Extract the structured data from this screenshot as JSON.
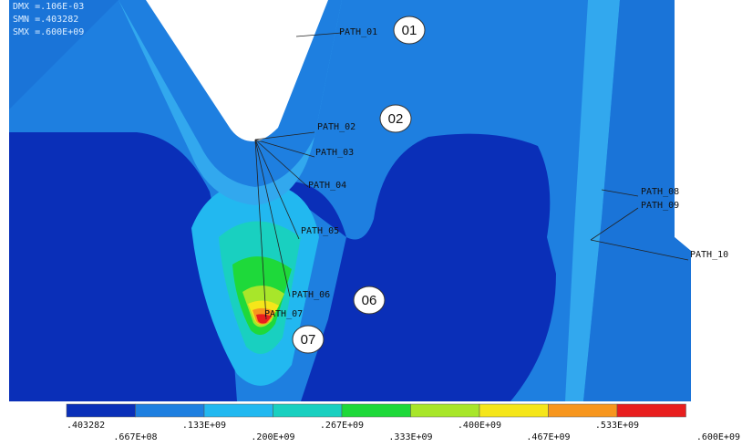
{
  "header": {
    "lines": [
      "DMX =.106E-03",
      "SMN =.403282",
      "SMX =.600E+09"
    ]
  },
  "path_labels": [
    "PATH_01",
    "PATH_02",
    "PATH_03",
    "PATH_04",
    "PATH_05",
    "PATH_06",
    "PATH_07",
    "PATH_08",
    "PATH_09",
    "PATH_10"
  ],
  "callouts": [
    "01",
    "02",
    "06",
    "07"
  ],
  "legend": {
    "labels": [
      ".403282",
      ".667E+08",
      ".133E+09",
      ".200E+09",
      ".267E+09",
      ".333E+09",
      ".400E+09",
      ".467E+09",
      ".533E+09",
      ".600E+09"
    ],
    "colors": [
      "#0a2fb8",
      "#1e7fe0",
      "#22b8f0",
      "#19d0c0",
      "#1ed93a",
      "#a8e62a",
      "#f5e61a",
      "#f7961e",
      "#e81e1e"
    ]
  }
}
